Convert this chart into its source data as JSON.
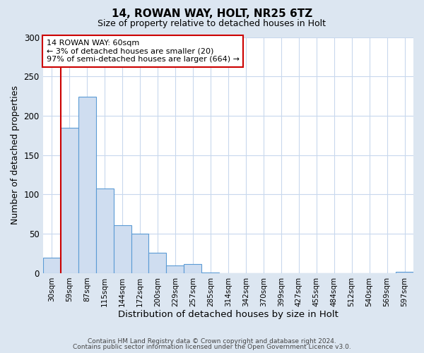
{
  "title": "14, ROWAN WAY, HOLT, NR25 6TZ",
  "subtitle": "Size of property relative to detached houses in Holt",
  "xlabel": "Distribution of detached houses by size in Holt",
  "ylabel": "Number of detached properties",
  "footer_line1": "Contains HM Land Registry data © Crown copyright and database right 2024.",
  "footer_line2": "Contains public sector information licensed under the Open Government Licence v3.0.",
  "bar_labels": [
    "30sqm",
    "59sqm",
    "87sqm",
    "115sqm",
    "144sqm",
    "172sqm",
    "200sqm",
    "229sqm",
    "257sqm",
    "285sqm",
    "314sqm",
    "342sqm",
    "370sqm",
    "399sqm",
    "427sqm",
    "455sqm",
    "484sqm",
    "512sqm",
    "540sqm",
    "569sqm",
    "597sqm"
  ],
  "bar_values": [
    20,
    185,
    224,
    108,
    61,
    50,
    26,
    10,
    12,
    1,
    0,
    0,
    0,
    0,
    0,
    0,
    0,
    0,
    0,
    0,
    2
  ],
  "bar_color": "#cfddf0",
  "bar_edge_color": "#5b9bd5",
  "background_color": "#dce6f1",
  "plot_bg_color": "#ffffff",
  "grid_color": "#c8d8ed",
  "vline_color": "#cc0000",
  "annotation_title": "14 ROWAN WAY: 60sqm",
  "annotation_line2": "← 3% of detached houses are smaller (20)",
  "annotation_line3": "97% of semi-detached houses are larger (664) →",
  "annotation_box_color": "#ffffff",
  "annotation_box_edge_color": "#cc0000",
  "ylim": [
    0,
    300
  ],
  "yticks": [
    0,
    50,
    100,
    150,
    200,
    250,
    300
  ],
  "title_fontsize": 11,
  "subtitle_fontsize": 9
}
